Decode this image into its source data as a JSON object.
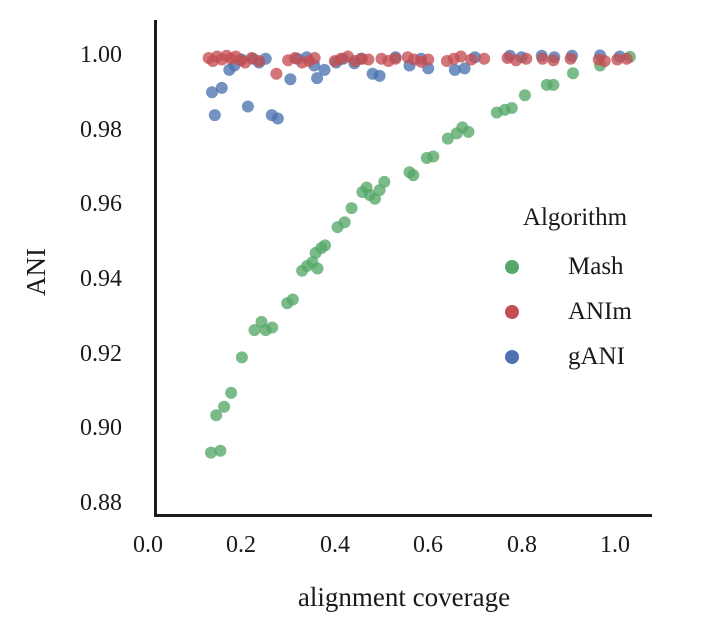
{
  "figure": {
    "background": "#ffffff",
    "text_color": "#1a1a1a",
    "spine_color": "#1c1c1c"
  },
  "chart_data": {
    "type": "scatter",
    "title": "",
    "xlabel": "alignment coverage",
    "ylabel": "ANI",
    "xlim": [
      0.0,
      1.08
    ],
    "ylim": [
      0.877,
      1.009
    ],
    "grid": false,
    "xticks": [
      {
        "v": 0.0,
        "label": "0.0"
      },
      {
        "v": 0.2,
        "label": "0.2"
      },
      {
        "v": 0.4,
        "label": "0.4"
      },
      {
        "v": 0.6,
        "label": "0.6"
      },
      {
        "v": 0.8,
        "label": "0.8"
      },
      {
        "v": 1.0,
        "label": "1.0"
      }
    ],
    "yticks": [
      {
        "v": 1.0,
        "label": "1.00"
      },
      {
        "v": 0.98,
        "label": "0.98"
      },
      {
        "v": 0.96,
        "label": "0.96"
      },
      {
        "v": 0.94,
        "label": "0.94"
      },
      {
        "v": 0.92,
        "label": "0.92"
      },
      {
        "v": 0.9,
        "label": "0.90"
      },
      {
        "v": 0.88,
        "label": "0.88"
      }
    ],
    "legend": {
      "title": "Algorithm",
      "position": "lower right"
    },
    "draw_order": [
      "Mash",
      "gANI",
      "ANIm"
    ],
    "series": [
      {
        "name": "Mash",
        "color": "#55a868",
        "points": [
          [
            0.135,
            0.8935
          ],
          [
            0.155,
            0.894
          ],
          [
            0.146,
            0.9035
          ],
          [
            0.163,
            0.9058
          ],
          [
            0.178,
            0.9095
          ],
          [
            0.201,
            0.919
          ],
          [
            0.228,
            0.9263
          ],
          [
            0.243,
            0.9285
          ],
          [
            0.252,
            0.9263
          ],
          [
            0.266,
            0.927
          ],
          [
            0.298,
            0.9335
          ],
          [
            0.31,
            0.9345
          ],
          [
            0.33,
            0.9422
          ],
          [
            0.341,
            0.9435
          ],
          [
            0.352,
            0.9445
          ],
          [
            0.363,
            0.9428
          ],
          [
            0.359,
            0.947
          ],
          [
            0.371,
            0.9483
          ],
          [
            0.379,
            0.949
          ],
          [
            0.406,
            0.9539
          ],
          [
            0.421,
            0.9552
          ],
          [
            0.436,
            0.959
          ],
          [
            0.459,
            0.9633
          ],
          [
            0.468,
            0.9645
          ],
          [
            0.475,
            0.9625
          ],
          [
            0.486,
            0.9615
          ],
          [
            0.496,
            0.9638
          ],
          [
            0.506,
            0.966
          ],
          [
            0.56,
            0.9686
          ],
          [
            0.568,
            0.9678
          ],
          [
            0.597,
            0.9724
          ],
          [
            0.611,
            0.9728
          ],
          [
            0.642,
            0.9776
          ],
          [
            0.661,
            0.979
          ],
          [
            0.673,
            0.9806
          ],
          [
            0.686,
            0.9794
          ],
          [
            0.747,
            0.9846
          ],
          [
            0.764,
            0.9853
          ],
          [
            0.779,
            0.9858
          ],
          [
            0.807,
            0.9892
          ],
          [
            0.854,
            0.992
          ],
          [
            0.868,
            0.992
          ],
          [
            0.91,
            0.9951
          ],
          [
            0.968,
            0.9972
          ],
          [
            1.032,
            0.9995
          ]
        ]
      },
      {
        "name": "ANIm",
        "color": "#c44e52",
        "points": [
          [
            0.13,
            0.9992
          ],
          [
            0.139,
            0.9984
          ],
          [
            0.148,
            0.9996
          ],
          [
            0.158,
            0.9988
          ],
          [
            0.168,
            0.9998
          ],
          [
            0.178,
            0.999
          ],
          [
            0.188,
            0.9996
          ],
          [
            0.198,
            0.9986
          ],
          [
            0.208,
            0.998
          ],
          [
            0.222,
            0.9992
          ],
          [
            0.238,
            0.9984
          ],
          [
            0.275,
            0.995
          ],
          [
            0.3,
            0.9986
          ],
          [
            0.315,
            0.9992
          ],
          [
            0.33,
            0.998
          ],
          [
            0.345,
            0.9984
          ],
          [
            0.357,
            0.9992
          ],
          [
            0.4,
            0.9984
          ],
          [
            0.413,
            0.999
          ],
          [
            0.428,
            0.9996
          ],
          [
            0.443,
            0.9984
          ],
          [
            0.458,
            0.999
          ],
          [
            0.472,
            0.9988
          ],
          [
            0.5,
            0.999
          ],
          [
            0.515,
            0.9984
          ],
          [
            0.53,
            0.999
          ],
          [
            0.556,
            0.9994
          ],
          [
            0.57,
            0.9988
          ],
          [
            0.585,
            0.9982
          ],
          [
            0.6,
            0.9988
          ],
          [
            0.64,
            0.9984
          ],
          [
            0.655,
            0.999
          ],
          [
            0.67,
            0.9996
          ],
          [
            0.692,
            0.9988
          ],
          [
            0.72,
            0.999
          ],
          [
            0.77,
            0.9992
          ],
          [
            0.788,
            0.9986
          ],
          [
            0.81,
            0.999
          ],
          [
            0.845,
            0.999
          ],
          [
            0.868,
            0.9986
          ],
          [
            0.905,
            0.999
          ],
          [
            0.965,
            0.9988
          ],
          [
            0.978,
            0.9984
          ],
          [
            1.005,
            0.9988
          ],
          [
            1.025,
            0.999
          ]
        ]
      },
      {
        "name": "gANI",
        "color": "#4c72b0",
        "points": [
          [
            0.137,
            0.99
          ],
          [
            0.143,
            0.9839
          ],
          [
            0.158,
            0.9912
          ],
          [
            0.174,
            0.996
          ],
          [
            0.185,
            0.9972
          ],
          [
            0.2,
            0.9988
          ],
          [
            0.214,
            0.9862
          ],
          [
            0.225,
            0.999
          ],
          [
            0.238,
            0.998
          ],
          [
            0.252,
            0.999
          ],
          [
            0.265,
            0.9839
          ],
          [
            0.278,
            0.983
          ],
          [
            0.305,
            0.9935
          ],
          [
            0.32,
            0.999
          ],
          [
            0.34,
            0.9994
          ],
          [
            0.356,
            0.9972
          ],
          [
            0.362,
            0.9938
          ],
          [
            0.378,
            0.996
          ],
          [
            0.403,
            0.998
          ],
          [
            0.418,
            0.999
          ],
          [
            0.442,
            0.9978
          ],
          [
            0.456,
            0.999
          ],
          [
            0.481,
            0.995
          ],
          [
            0.496,
            0.9944
          ],
          [
            0.53,
            0.9994
          ],
          [
            0.56,
            0.9972
          ],
          [
            0.585,
            0.999
          ],
          [
            0.6,
            0.9964
          ],
          [
            0.657,
            0.996
          ],
          [
            0.678,
            0.9964
          ],
          [
            0.7,
            0.9994
          ],
          [
            0.775,
            0.9998
          ],
          [
            0.8,
            0.9994
          ],
          [
            0.843,
            0.9998
          ],
          [
            0.87,
            0.9994
          ],
          [
            0.908,
            0.9998
          ],
          [
            0.968,
            0.9999
          ],
          [
            1.01,
            0.9996
          ]
        ]
      }
    ]
  }
}
